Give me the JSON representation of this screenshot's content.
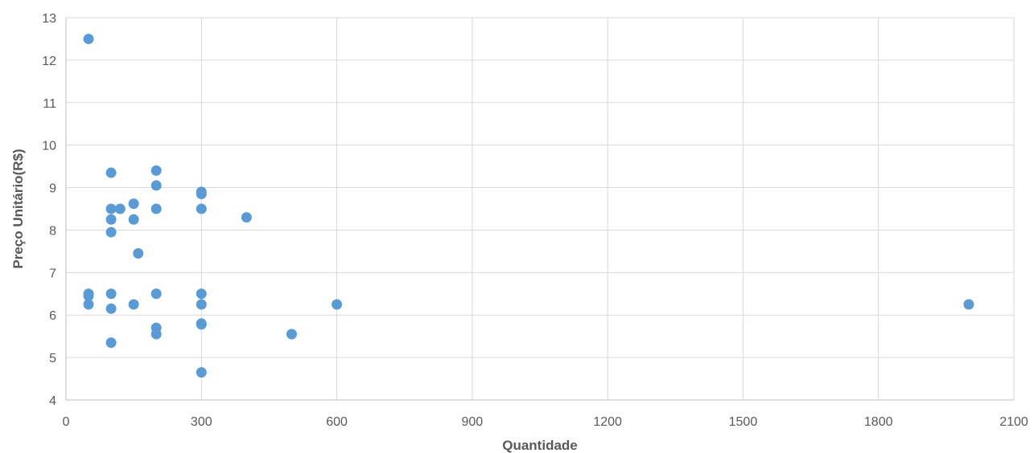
{
  "chart_data": {
    "type": "scatter",
    "xlabel": "Quantidade",
    "ylabel": "Preço Unitário(R$)",
    "xlim": [
      0,
      2100
    ],
    "ylim": [
      4,
      13
    ],
    "x_ticks": [
      "0",
      "300",
      "600",
      "900",
      "1200",
      "1500",
      "1800",
      "2100"
    ],
    "y_ticks": [
      "4",
      "5",
      "6",
      "7",
      "8",
      "9",
      "10",
      "11",
      "12",
      "13"
    ],
    "grid": true,
    "marker_color": "#5b9bd5",
    "points": [
      {
        "x": 50,
        "y": 12.5
      },
      {
        "x": 50,
        "y": 6.5
      },
      {
        "x": 50,
        "y": 6.45
      },
      {
        "x": 50,
        "y": 6.25
      },
      {
        "x": 100,
        "y": 9.35
      },
      {
        "x": 100,
        "y": 8.5
      },
      {
        "x": 100,
        "y": 8.25
      },
      {
        "x": 100,
        "y": 7.95
      },
      {
        "x": 100,
        "y": 6.5
      },
      {
        "x": 100,
        "y": 6.15
      },
      {
        "x": 100,
        "y": 5.35
      },
      {
        "x": 120,
        "y": 8.5
      },
      {
        "x": 150,
        "y": 8.62
      },
      {
        "x": 150,
        "y": 8.25
      },
      {
        "x": 150,
        "y": 6.25
      },
      {
        "x": 160,
        "y": 7.45
      },
      {
        "x": 200,
        "y": 9.4
      },
      {
        "x": 200,
        "y": 9.05
      },
      {
        "x": 200,
        "y": 8.5
      },
      {
        "x": 200,
        "y": 6.5
      },
      {
        "x": 200,
        "y": 5.7
      },
      {
        "x": 200,
        "y": 5.55
      },
      {
        "x": 300,
        "y": 8.9
      },
      {
        "x": 300,
        "y": 8.85
      },
      {
        "x": 300,
        "y": 8.5
      },
      {
        "x": 300,
        "y": 6.5
      },
      {
        "x": 300,
        "y": 6.25
      },
      {
        "x": 300,
        "y": 5.8
      },
      {
        "x": 300,
        "y": 5.78
      },
      {
        "x": 300,
        "y": 4.65
      },
      {
        "x": 400,
        "y": 8.3
      },
      {
        "x": 500,
        "y": 5.55
      },
      {
        "x": 600,
        "y": 6.25
      },
      {
        "x": 2000,
        "y": 6.25
      }
    ]
  }
}
